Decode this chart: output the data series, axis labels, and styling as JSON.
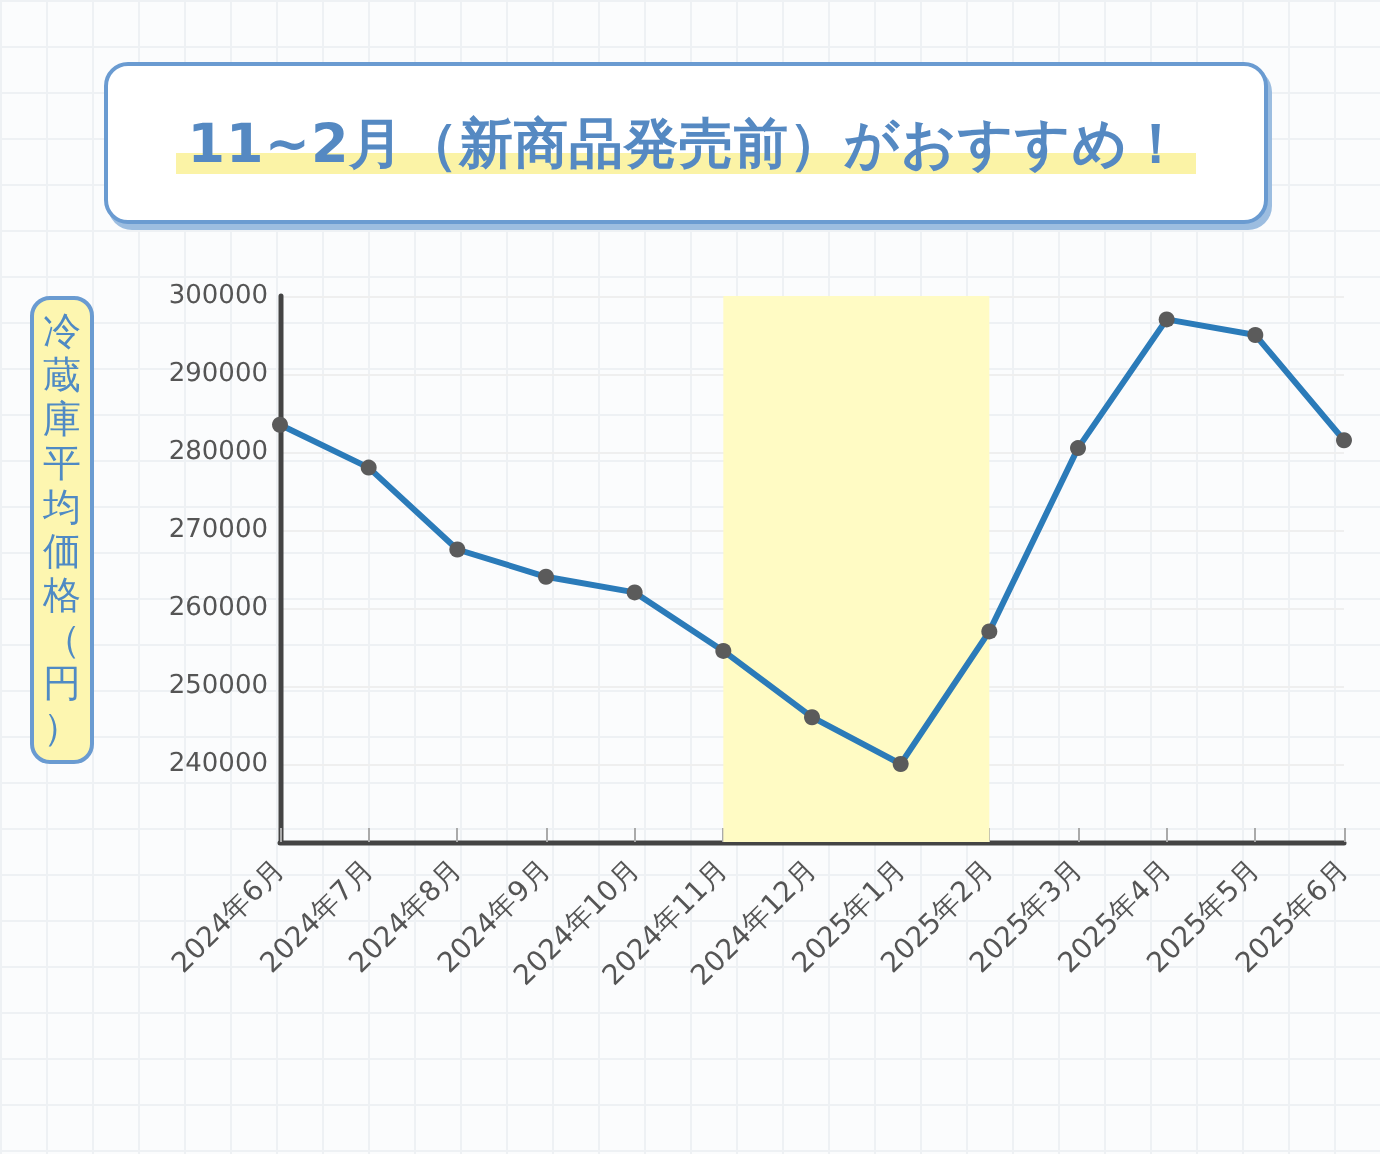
{
  "chart_data": {
    "type": "line",
    "title": "11~2月（新商品発売前）がおすすめ！",
    "ylabel": "冷蔵庫平均価格（円）",
    "categories": [
      "2024年6月",
      "2024年7月",
      "2024年8月",
      "2024年9月",
      "2024年10月",
      "2024年11月",
      "2024年12月",
      "2025年1月",
      "2025年2月",
      "2025年3月",
      "2025年4月",
      "2025年5月",
      "2025年6月"
    ],
    "series": [
      {
        "color": "#2b7bb9",
        "values": [
          283500,
          278000,
          267500,
          264000,
          262000,
          254500,
          246000,
          240000,
          257000,
          280500,
          297000,
          295000,
          281500
        ]
      }
    ],
    "ylim": [
      230000,
      300000
    ],
    "yticks": [
      240000,
      250000,
      260000,
      270000,
      280000,
      290000,
      300000
    ],
    "grid": "y",
    "marker": "circle",
    "line_style": "solid",
    "bands": [
      {
        "axis": "x",
        "from": "2024年11月",
        "to": "2025年2月",
        "color": "#fffbc4"
      }
    ]
  }
}
